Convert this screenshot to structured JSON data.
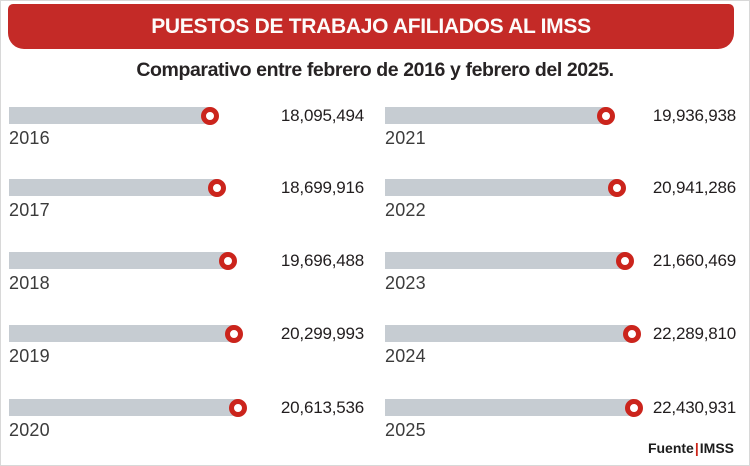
{
  "header": {
    "title": "PUESTOS DE TRABAJO AFILIADOS AL IMSS",
    "subtitle": "Comparativo entre febrero de 2016 y febrero del 2025."
  },
  "source": {
    "label": "Fuente",
    "separator": "|",
    "name": "IMSS"
  },
  "colors": {
    "banner_red": "#c42a27",
    "marker_red": "#cb241c",
    "bar_gray": "#c6ccd2",
    "text_dark": "#211d1e",
    "title_text": "#fdfbfa"
  },
  "chart_data": {
    "type": "bar",
    "orientation": "horizontal",
    "title": "PUESTOS DE TRABAJO AFILIADOS AL IMSS",
    "subtitle": "Comparativo entre febrero de 2016 y febrero del 2025.",
    "legend": "none",
    "grid": false,
    "axis_labels": "none",
    "value_range": [
      0,
      22430931
    ],
    "max_value": 22430931,
    "categories": [
      "2016",
      "2017",
      "2018",
      "2019",
      "2020",
      "2021",
      "2022",
      "2023",
      "2024",
      "2025"
    ],
    "values": [
      18095494,
      18699916,
      19696488,
      20299993,
      20613536,
      19936938,
      20941286,
      21660469,
      22289810,
      22430931
    ],
    "layout": "two-column, years 2016-2020 left, 2021-2025 right, red ring marker at bar end",
    "rows": [
      {
        "year": "2016",
        "value": 18095494,
        "display": "18,095,494"
      },
      {
        "year": "2017",
        "value": 18699916,
        "display": "18,699,916"
      },
      {
        "year": "2018",
        "value": 19696488,
        "display": "19,696,488"
      },
      {
        "year": "2019",
        "value": 20299993,
        "display": "20,299,993"
      },
      {
        "year": "2020",
        "value": 20613536,
        "display": "20,613,536"
      },
      {
        "year": "2021",
        "value": 19936938,
        "display": "19,936,938"
      },
      {
        "year": "2022",
        "value": 20941286,
        "display": "20,941,286"
      },
      {
        "year": "2023",
        "value": 21660469,
        "display": "21,660,469"
      },
      {
        "year": "2024",
        "value": 22289810,
        "display": "22,289,810"
      },
      {
        "year": "2025",
        "value": 22430931,
        "display": "22,430,931"
      }
    ]
  }
}
